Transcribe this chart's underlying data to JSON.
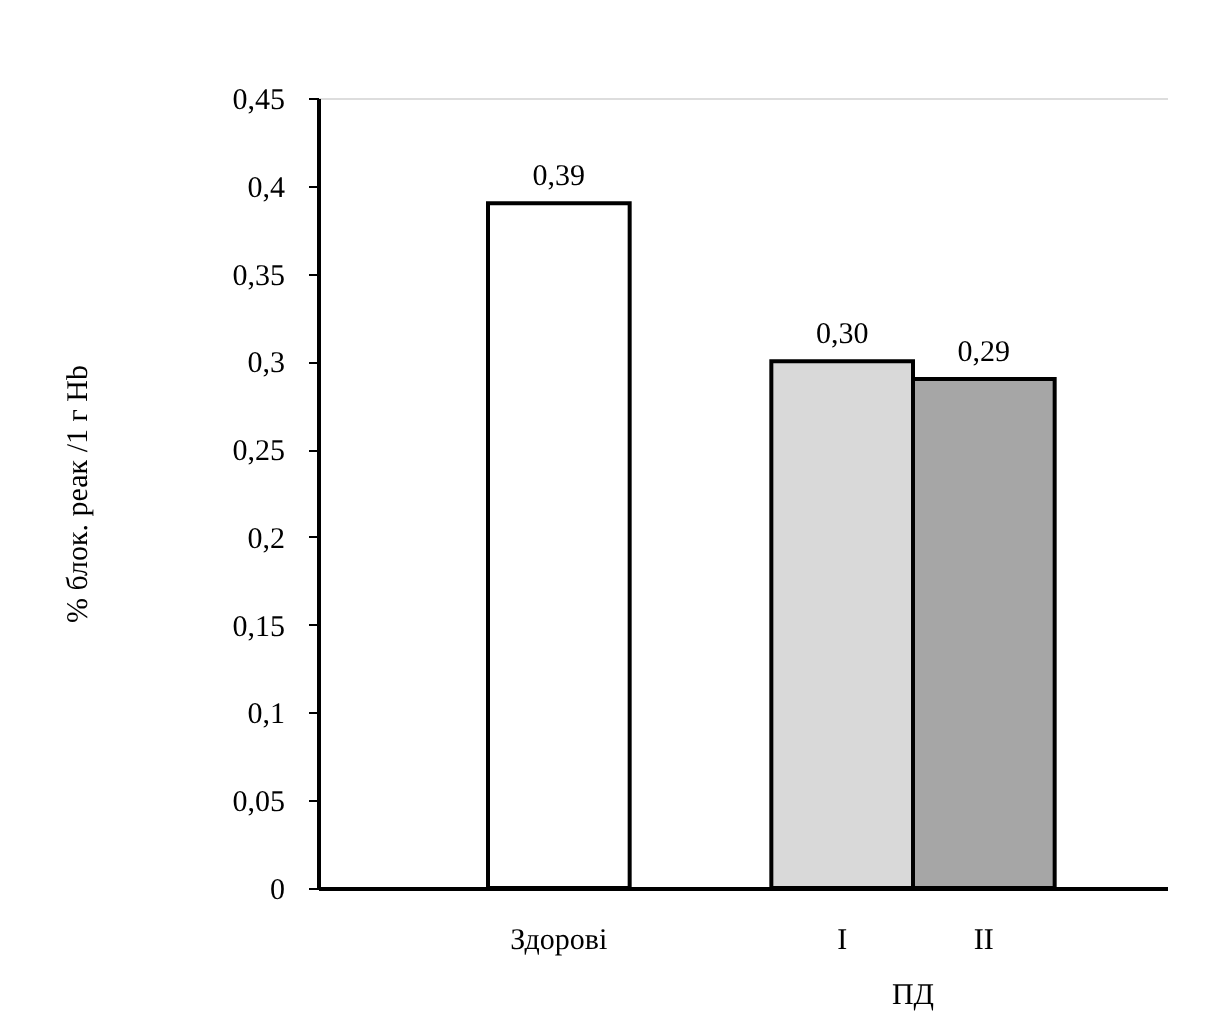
{
  "chart_data": {
    "type": "bar",
    "ylabel": "% блок. реак /1 г Hb",
    "categories": [
      "Здорові",
      null,
      "I",
      "II"
    ],
    "values": [
      0.39,
      null,
      0.3,
      0.29
    ],
    "value_labels": [
      "0,39",
      null,
      "0,30",
      "0,29"
    ],
    "colors": [
      "#ffffff",
      "#ffffff",
      "#d9d9d9",
      "#a6a6a6"
    ],
    "annotations": [
      "ПД"
    ],
    "ylim": [
      0,
      0.45
    ],
    "yticks": [
      0,
      {
        "value": 0.05,
        "label": "0,05"
      },
      {
        "value": 0.1,
        "label": "0,1"
      },
      {
        "value": 0.15,
        "label": "0,15"
      },
      {
        "value": 0.2,
        "label": "0,2"
      },
      {
        "value": 0.25,
        "label": "0,25"
      },
      {
        "value": 0.3,
        "label": "0,3"
      },
      {
        "value": 0.35,
        "label": "0,35"
      },
      {
        "value": 0.4,
        "label": "0,4"
      },
      {
        "value": 0.45,
        "label": "0,45"
      }
    ],
    "grid": false
  }
}
